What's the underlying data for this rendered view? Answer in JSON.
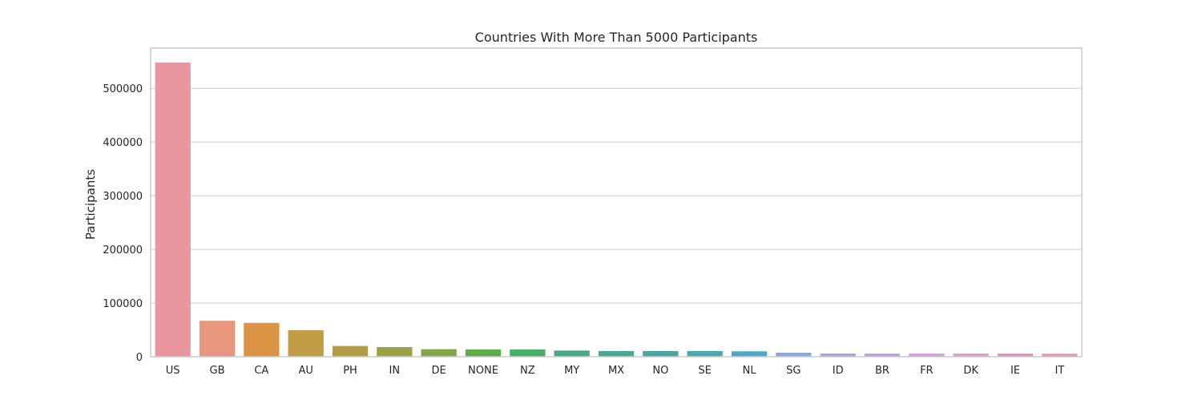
{
  "chart_data": {
    "type": "bar",
    "title": "Countries With More Than 5000 Participants",
    "xlabel": "",
    "ylabel": "Participants",
    "categories": [
      "US",
      "GB",
      "CA",
      "AU",
      "PH",
      "IN",
      "DE",
      "NONE",
      "NZ",
      "MY",
      "MX",
      "NO",
      "SE",
      "NL",
      "SG",
      "ID",
      "BR",
      "FR",
      "DK",
      "IE",
      "IT"
    ],
    "values": [
      548000,
      67000,
      63000,
      49500,
      20000,
      18000,
      14000,
      13500,
      13500,
      11500,
      10500,
      10500,
      10500,
      10000,
      7500,
      6000,
      5800,
      5800,
      5800,
      5800,
      5600
    ],
    "colors": [
      "#e9969f",
      "#e8977e",
      "#db9446",
      "#c09c47",
      "#b39c46",
      "#9ea246",
      "#84a646",
      "#5ead49",
      "#48ae67",
      "#48a988",
      "#49a797",
      "#4aa6a2",
      "#4aa8b1",
      "#4ca8c5",
      "#8da7e1",
      "#aea2e3",
      "#c1a0e2",
      "#d79be0",
      "#df96d3",
      "#e391c3",
      "#e795b3"
    ],
    "yticks": [
      0,
      100000,
      200000,
      300000,
      400000,
      500000
    ],
    "ytick_labels": [
      "0",
      "100000",
      "200000",
      "300000",
      "400000",
      "500000"
    ],
    "ylim": [
      0,
      575000
    ],
    "grid": "horizontal"
  }
}
